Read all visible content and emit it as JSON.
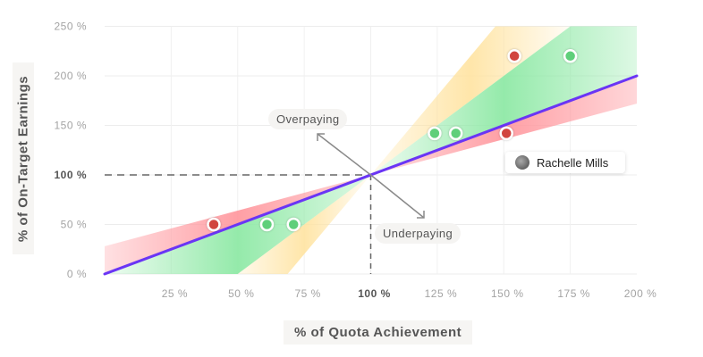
{
  "chart_data": {
    "type": "scatter",
    "xlabel": "% of Quota Achievement",
    "ylabel": "% of On-Target Earnings",
    "xlim": [
      0,
      200
    ],
    "ylim": [
      0,
      250
    ],
    "x_ticks": [
      "25 %",
      "50 %",
      "75 %",
      "100 %",
      "125 %",
      "150 %",
      "175 %",
      "200 %"
    ],
    "x_tick_values": [
      25,
      50,
      75,
      100,
      125,
      150,
      175,
      200
    ],
    "y_ticks": [
      "0 %",
      "50 %",
      "100 %",
      "150 %",
      "200 %",
      "250 %"
    ],
    "y_tick_values": [
      0,
      50,
      100,
      150,
      200,
      250
    ],
    "reference_line": {
      "slope": 1,
      "color": "#6a35f5"
    },
    "bands": [
      {
        "name": "overpaying-mild",
        "slope_low": 0.72,
        "color": "#ff9aa0"
      },
      {
        "name": "fair",
        "slope_high": 2.0,
        "color": "#8fe9a6"
      },
      {
        "name": "underpaying-zone",
        "slope_high": 3.2,
        "color": "#ffe3a0"
      }
    ],
    "points": [
      {
        "x": 41,
        "y": 50,
        "status": "red"
      },
      {
        "x": 61,
        "y": 50,
        "status": "green"
      },
      {
        "x": 71,
        "y": 50,
        "status": "green"
      },
      {
        "x": 124,
        "y": 142,
        "status": "green"
      },
      {
        "x": 132,
        "y": 142,
        "status": "green"
      },
      {
        "x": 151,
        "y": 142,
        "status": "red"
      },
      {
        "x": 154,
        "y": 220,
        "status": "red"
      },
      {
        "x": 175,
        "y": 220,
        "status": "green"
      }
    ],
    "annotations": {
      "overpaying": "Overpaying",
      "underpaying": "Underpaying"
    },
    "tooltip": {
      "name": "Rachelle Mills"
    },
    "colors": {
      "red": "#d1453f",
      "green": "#5fcf7a"
    }
  }
}
